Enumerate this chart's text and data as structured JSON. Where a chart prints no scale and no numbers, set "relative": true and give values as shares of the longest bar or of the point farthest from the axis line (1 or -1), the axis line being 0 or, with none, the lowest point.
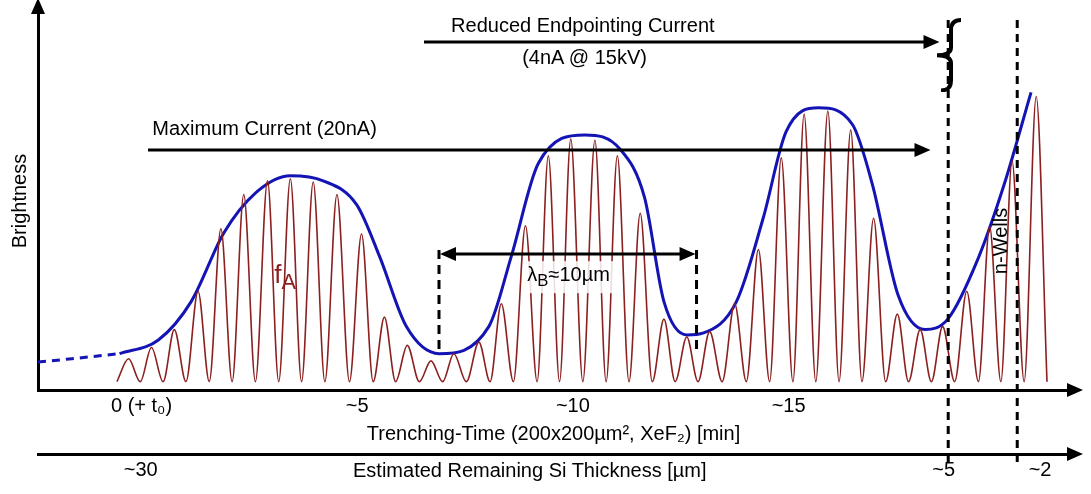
{
  "chart_data": {
    "type": "line",
    "relative": true,
    "ylabel": "Brightness",
    "xlabel": "Trenching-Time (200x200µm², XeF₂) [min]",
    "x2label": "Estimated Remaining Si Thickness [µm]",
    "xlim": [
      -2.4,
      21.5
    ],
    "xticks": [
      {
        "value": 0,
        "label": "0 (+ t₀)"
      },
      {
        "value": 5,
        "label": "~5"
      },
      {
        "value": 10,
        "label": "~10"
      },
      {
        "value": 15,
        "label": "~15"
      }
    ],
    "x2lim": [
      33.2,
      1.1
    ],
    "x2ticks": [
      {
        "value": 30,
        "label": "~30"
      },
      {
        "value": 5,
        "label": "~5"
      },
      {
        "value": 2,
        "label": "~2"
      }
    ],
    "marker": "none",
    "grid": false,
    "legend": false,
    "ref_lines": [
      {
        "axis": "x",
        "value": 18.7,
        "color": "#000000",
        "line_style": "dashed"
      },
      {
        "axis": "x",
        "value": 20.3,
        "color": "#000000",
        "line_style": "dashed"
      }
    ],
    "annotations": [
      "Reduced Endpointing Current",
      "(4nA @ 15kV)",
      "Maximum Current (20nA)",
      "λ$_{B}$≈10µm",
      "n-Wells"
    ],
    "series": [
      {
        "name": "f$_{A}$",
        "color": "#8b2020",
        "x": [
          -0.57,
          -0.3,
          -0.03,
          0.23,
          0.5,
          0.76,
          1.03,
          1.31,
          1.57,
          1.84,
          2.1,
          2.37,
          2.64,
          2.92,
          3.18,
          3.45,
          3.71,
          3.98,
          4.25,
          4.53,
          4.82,
          5.1,
          5.37,
          5.63,
          5.89,
          6.16,
          6.44,
          6.71,
          6.98,
          7.24,
          7.53,
          7.82,
          8.08,
          8.34,
          8.62,
          8.9,
          9.17,
          9.43,
          9.69,
          9.95,
          10.23,
          10.51,
          10.77,
          11.03,
          11.3,
          11.56,
          11.84,
          12.11,
          12.37,
          12.64,
          12.9,
          13.17,
          13.46,
          13.75,
          14.02,
          14.3,
          14.56,
          14.83,
          15.1,
          15.36,
          15.63,
          15.91,
          16.17,
          16.44,
          16.7,
          16.97,
          17.25,
          17.52,
          17.78,
          18.05,
          18.31,
          18.57,
          18.85,
          19.13,
          19.4,
          19.66,
          19.92,
          20.18,
          20.46,
          20.74,
          20.99
        ],
        "values": [
          0.028,
          0.105,
          0.028,
          0.143,
          0.028,
          0.203,
          0.028,
          0.332,
          0.028,
          0.542,
          0.028,
          0.657,
          0.028,
          0.703,
          0.028,
          0.71,
          0.028,
          0.699,
          0.028,
          0.657,
          0.028,
          0.524,
          0.028,
          0.245,
          0.028,
          0.15,
          0.028,
          0.098,
          0.028,
          0.122,
          0.028,
          0.161,
          0.028,
          0.29,
          0.028,
          0.552,
          0.028,
          0.787,
          0.028,
          0.843,
          0.028,
          0.839,
          0.028,
          0.787,
          0.028,
          0.594,
          0.028,
          0.238,
          0.028,
          0.178,
          0.028,
          0.196,
          0.028,
          0.29,
          0.028,
          0.472,
          0.028,
          0.78,
          0.028,
          0.927,
          0.028,
          0.937,
          0.028,
          0.874,
          0.028,
          0.577,
          0.028,
          0.255,
          0.028,
          0.203,
          0.028,
          0.213,
          0.028,
          0.332,
          0.028,
          0.549,
          0.028,
          0.769,
          0.028,
          0.986,
          0.028
        ]
      },
      {
        "color": "#1414b4",
        "x": [
          -0.51,
          0.39,
          1.15,
          1.91,
          2.69,
          3.45,
          4.21,
          4.99,
          5.52,
          6.14,
          6.9,
          8.05,
          8.57,
          9.2,
          10.28,
          11.1,
          11.66,
          12.11,
          12.64,
          13.03,
          13.79,
          14.41,
          14.94,
          15.7,
          16.48,
          16.94,
          17.54,
          18.16,
          18.69,
          19.38,
          20.0,
          20.62
        ],
        "values": [
          0.122,
          0.168,
          0.297,
          0.528,
          0.668,
          0.72,
          0.703,
          0.622,
          0.448,
          0.213,
          0.122,
          0.213,
          0.448,
          0.762,
          0.857,
          0.808,
          0.647,
          0.297,
          0.185,
          0.192,
          0.297,
          0.577,
          0.867,
          0.948,
          0.892,
          0.692,
          0.318,
          0.203,
          0.238,
          0.437,
          0.692,
          1.0
        ]
      },
      {
        "color": "#1414b4",
        "line_style": "dashed",
        "x": [
          -2.4,
          -1.61,
          -0.51
        ],
        "values": [
          0.094,
          0.105,
          0.122
        ]
      }
    ]
  }
}
